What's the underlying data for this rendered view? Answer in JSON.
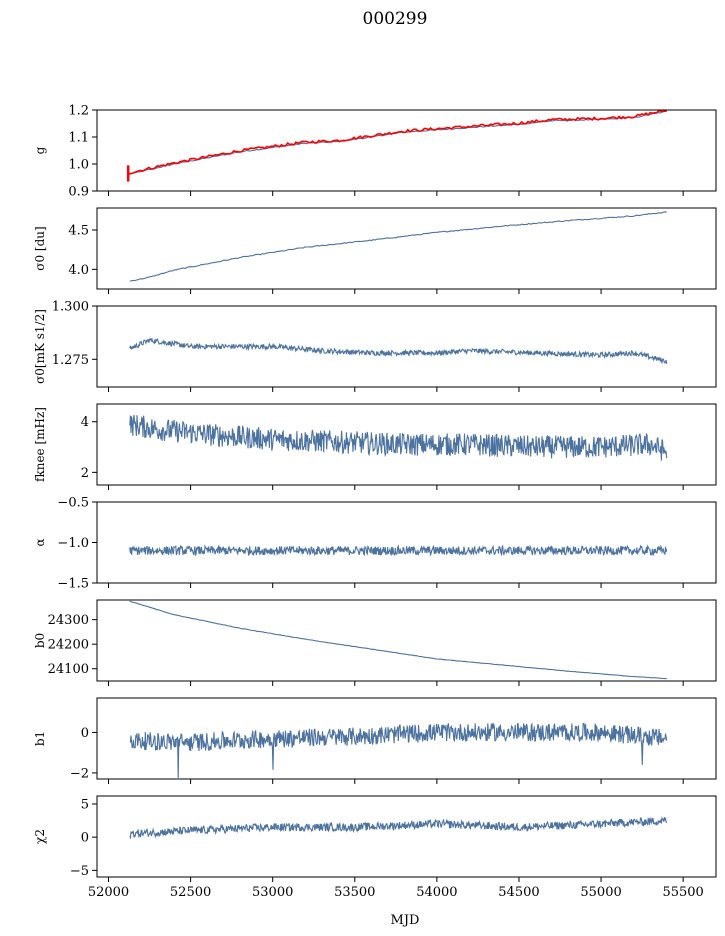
{
  "figure": {
    "title": "000299",
    "xlabel": "MJD"
  },
  "colors": {
    "series": "#4c72a0",
    "fit": "#ff0000",
    "axes": "#000000"
  },
  "chart_data": [
    {
      "type": "line",
      "ylabel": "g",
      "xlim": [
        51930,
        55700
      ],
      "ylim": [
        0.9,
        1.2
      ],
      "yticks": [
        "0.9",
        "1.0",
        "1.1",
        "1.2"
      ],
      "show_xticklabels": false,
      "series": [
        {
          "x": [
            52120,
            52400,
            52800,
            53200,
            53400,
            53800,
            54200,
            54500,
            54700,
            55000,
            55200,
            55400
          ],
          "values": [
            0.962,
            1.0,
            1.045,
            1.077,
            1.083,
            1.118,
            1.135,
            1.147,
            1.16,
            1.165,
            1.172,
            1.195
          ]
        },
        {
          "name_hidden": "",
          "x": [
            52120,
            52400,
            52800,
            53200,
            53400,
            53800,
            54200,
            54500,
            54700,
            55000,
            55200,
            55400
          ],
          "values": [
            0.966,
            1.004,
            1.049,
            1.081,
            1.087,
            1.122,
            1.139,
            1.151,
            1.164,
            1.169,
            1.176,
            1.199
          ],
          "color": "fit"
        }
      ]
    },
    {
      "type": "line",
      "ylabel": "σ0 [du]",
      "xlim": [
        51930,
        55700
      ],
      "ylim": [
        3.75,
        4.78
      ],
      "yticks": [
        "4.0",
        "4.5"
      ],
      "show_xticklabels": false,
      "series": [
        {
          "x": [
            52130,
            52250,
            52400,
            52800,
            53200,
            53600,
            54000,
            54400,
            54800,
            55200,
            55400
          ],
          "values": [
            3.85,
            3.9,
            3.99,
            4.15,
            4.28,
            4.37,
            4.47,
            4.55,
            4.62,
            4.68,
            4.73
          ]
        }
      ]
    },
    {
      "type": "line",
      "ylabel": "σ0[mK s1/2]",
      "xlim": [
        51930,
        55700
      ],
      "ylim": [
        1.262,
        1.3
      ],
      "yticks": [
        "1.275",
        "1.300"
      ],
      "show_xticklabels": false,
      "series": [
        {
          "x": [
            52130,
            52250,
            52500,
            52800,
            53000,
            53300,
            53600,
            54000,
            54200,
            54600,
            55000,
            55200,
            55350,
            55400
          ],
          "values": [
            1.28,
            1.284,
            1.281,
            1.281,
            1.281,
            1.279,
            1.278,
            1.278,
            1.279,
            1.278,
            1.277,
            1.278,
            1.275,
            1.274
          ]
        }
      ]
    },
    {
      "type": "line",
      "ylabel": "fknee [mHz]",
      "xlim": [
        51930,
        55700
      ],
      "ylim": [
        1.5,
        4.7
      ],
      "yticks": [
        "2",
        "4"
      ],
      "show_xticklabels": false,
      "series": [
        {
          "x": [
            52130,
            52300,
            52600,
            53000,
            53400,
            53800,
            54200,
            54600,
            55000,
            55300,
            55400
          ],
          "values": [
            3.9,
            3.7,
            3.5,
            3.3,
            3.2,
            3.1,
            3.1,
            3.0,
            3.0,
            3.1,
            2.8
          ]
        }
      ]
    },
    {
      "type": "line",
      "ylabel": "α",
      "xlim": [
        51930,
        55700
      ],
      "ylim": [
        -1.5,
        -0.5
      ],
      "yticks": [
        "−1.5",
        "−1.0",
        "−0.5"
      ],
      "show_xticklabels": false,
      "series": [
        {
          "x": [
            52130,
            53000,
            54000,
            55000,
            55400
          ],
          "values": [
            -1.1,
            -1.1,
            -1.1,
            -1.1,
            -1.1
          ]
        }
      ]
    },
    {
      "type": "line",
      "ylabel": "b0",
      "xlim": [
        51930,
        55700
      ],
      "ylim": [
        24050,
        24380
      ],
      "yticks": [
        "24100",
        "24200",
        "24300"
      ],
      "show_xticklabels": false,
      "series": [
        {
          "x": [
            52130,
            52400,
            52800,
            53200,
            53600,
            54000,
            54400,
            54800,
            55200,
            55400
          ],
          "values": [
            24375,
            24320,
            24265,
            24220,
            24180,
            24140,
            24115,
            24090,
            24068,
            24060
          ]
        }
      ]
    },
    {
      "type": "line",
      "ylabel": "b1",
      "xlim": [
        51930,
        55700
      ],
      "ylim": [
        -2.3,
        1.7
      ],
      "yticks": [
        "−2",
        "0"
      ],
      "show_xticklabels": false,
      "series": [
        {
          "x": [
            52130,
            52500,
            53000,
            53500,
            54000,
            54500,
            55000,
            55400
          ],
          "values": [
            -0.4,
            -0.5,
            -0.3,
            -0.2,
            0.0,
            0.0,
            0.0,
            -0.3
          ]
        }
      ]
    },
    {
      "type": "line",
      "ylabel": "χ2",
      "xlim": [
        51930,
        55700
      ],
      "ylim": [
        -6,
        6.2
      ],
      "yticks": [
        "−5",
        "0",
        "5"
      ],
      "show_xticklabels": true,
      "xticks": [
        "52000",
        "52500",
        "53000",
        "53500",
        "54000",
        "54500",
        "55000",
        "55500"
      ],
      "series": [
        {
          "x": [
            52130,
            52500,
            53000,
            53500,
            54000,
            54500,
            55000,
            55400
          ],
          "values": [
            0.5,
            1.0,
            1.5,
            1.5,
            2.0,
            1.5,
            2.0,
            2.5
          ]
        }
      ]
    }
  ]
}
